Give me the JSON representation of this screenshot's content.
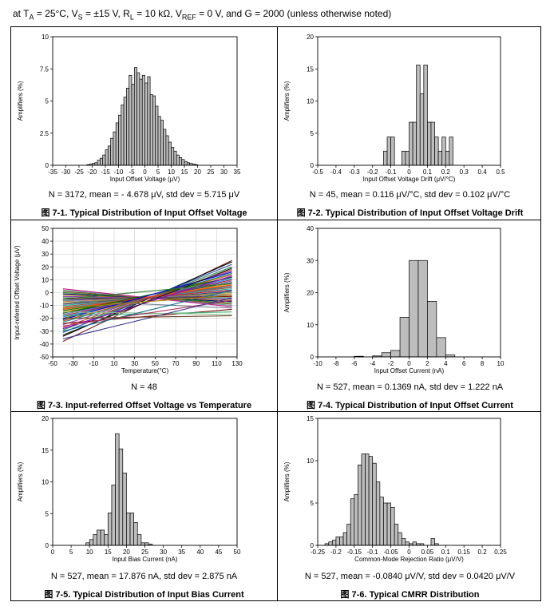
{
  "conditions": {
    "prefix": "at T",
    "ta_sub": "A",
    "mid1": " = 25°C, V",
    "vs_sub": "S",
    "mid2": " = ±15 V, R",
    "rl_sub": "L",
    "mid3": " = 10 kΩ, V",
    "vref_sub": "REF",
    "suffix": " = 0 V, and G = 2000 (unless otherwise noted)"
  },
  "colors": {
    "bar_fill": "#bdbdbd",
    "bar_stroke": "#000000"
  },
  "chart_data": [
    {
      "id": "c1",
      "type": "bar",
      "stats": "N = 3172, mean = - 4.678 μV, std dev = 5.715 μV",
      "caption": "图 7-1. Typical Distribution of Input Offset Voltage",
      "xlabel": "Input Offset Voltage (μV)",
      "ylabel": "Amplifiers (%)",
      "xlim": [
        -35,
        35
      ],
      "ylim": [
        0,
        10
      ],
      "xticks": [
        -35,
        -30,
        -25,
        -20,
        -15,
        -10,
        -5,
        0,
        5,
        10,
        15,
        20,
        25,
        30,
        35
      ],
      "yticks": [
        0,
        2.5,
        5,
        7.5,
        10
      ],
      "ytick_labels": [
        "0",
        "2.5",
        "5",
        "7.5",
        "10"
      ],
      "bin_start": -22,
      "bin_width": 1,
      "values": [
        0.05,
        0.1,
        0.15,
        0.2,
        0.4,
        0.55,
        0.8,
        1.2,
        1.5,
        2.1,
        2.6,
        3.3,
        3.9,
        4.7,
        5.3,
        6.0,
        7.0,
        6.3,
        7.6,
        7.2,
        6.7,
        7.0,
        6.4,
        6.9,
        5.5,
        5.4,
        4.6,
        3.8,
        3.5,
        2.8,
        2.3,
        1.8,
        1.4,
        1.1,
        0.8,
        0.6,
        0.45,
        0.3,
        0.2,
        0.15,
        0.1,
        0.05
      ]
    },
    {
      "id": "c2",
      "type": "bar",
      "stats": "N = 45, mean = 0.116 μV/°C, std dev = 0.102 μV/°C",
      "caption": "图 7-2. Typical Distribution of Input Offset Voltage Drift",
      "xlabel": "Input Offset Voltage Drift (μV/°C)",
      "ylabel": "Amplifiers (%)",
      "xlim": [
        -0.5,
        0.5
      ],
      "ylim": [
        0,
        20
      ],
      "xticks": [
        -0.5,
        -0.4,
        -0.3,
        -0.2,
        -0.1,
        0,
        0.1,
        0.2,
        0.3,
        0.4,
        0.5
      ],
      "xtick_labels": [
        "-0.5",
        "-0.4",
        "-0.3",
        "-0.2",
        "-0.1",
        "0",
        "0.1",
        "0.2",
        "0.3",
        "0.4",
        "0.5"
      ],
      "yticks": [
        0,
        5,
        10,
        15,
        20
      ],
      "bin_start": -0.14,
      "bin_width": 0.02,
      "values": [
        2.2,
        4.4,
        4.4,
        0,
        0,
        2.2,
        2.2,
        6.7,
        6.7,
        15.6,
        11.1,
        15.6,
        6.7,
        6.7,
        4.4,
        2.2,
        4.4,
        2.2,
        4.4
      ]
    },
    {
      "id": "c3",
      "type": "line",
      "stats": "N = 48",
      "caption": "图 7-3. Input-referred Offset Voltage vs Temperature",
      "xlabel": "Temperature(°C)",
      "ylabel": "Input-referred Offset Voltage (μV)",
      "xlim": [
        -50,
        130
      ],
      "ylim": [
        -50,
        50
      ],
      "xticks": [
        -50,
        -30,
        -10,
        10,
        30,
        50,
        70,
        90,
        110,
        130
      ],
      "yticks": [
        -50,
        -40,
        -30,
        -20,
        -10,
        0,
        10,
        20,
        30,
        40,
        50
      ],
      "series": [
        {
          "start": -38,
          "end": 25,
          "color": "#7a1f1f"
        },
        {
          "start": -34,
          "end": 24,
          "color": "#000000"
        },
        {
          "start": -31,
          "end": 22,
          "color": "#1f4fa8"
        },
        {
          "start": -29,
          "end": 20,
          "color": "#2e8b57"
        },
        {
          "start": -27,
          "end": 18,
          "color": "#c0392b"
        },
        {
          "start": -25,
          "end": 17,
          "color": "#8e44ad"
        },
        {
          "start": -23,
          "end": 15,
          "color": "#00868b"
        },
        {
          "start": -22,
          "end": 14,
          "color": "#d35400"
        },
        {
          "start": -20,
          "end": 12,
          "color": "#556b2f"
        },
        {
          "start": -19,
          "end": 11,
          "color": "#1e90ff"
        },
        {
          "start": -18,
          "end": 10,
          "color": "#b22222"
        },
        {
          "start": -17,
          "end": 9,
          "color": "#6a5acd"
        },
        {
          "start": -16,
          "end": 8,
          "color": "#2f4f4f"
        },
        {
          "start": -15,
          "end": 7,
          "color": "#ff8c00"
        },
        {
          "start": -14,
          "end": 6,
          "color": "#008000"
        },
        {
          "start": -13,
          "end": 5,
          "color": "#800080"
        },
        {
          "start": -12,
          "end": 5,
          "color": "#4682b4"
        },
        {
          "start": -11,
          "end": 4,
          "color": "#a0522d"
        },
        {
          "start": -10,
          "end": 3,
          "color": "#20b2aa"
        },
        {
          "start": -9,
          "end": 2,
          "color": "#dc143c"
        },
        {
          "start": -9,
          "end": 1,
          "color": "#483d8b"
        },
        {
          "start": -8,
          "end": 0,
          "color": "#6b8e23"
        },
        {
          "start": -7,
          "end": -1,
          "color": "#cd853f"
        },
        {
          "start": -6,
          "end": -2,
          "color": "#4169e1"
        },
        {
          "start": -5,
          "end": -3,
          "color": "#8b0000"
        },
        {
          "start": -4,
          "end": -4,
          "color": "#2e8b57"
        },
        {
          "start": -3,
          "end": -5,
          "color": "#9932cc"
        },
        {
          "start": -2,
          "end": -6,
          "color": "#b8860b"
        },
        {
          "start": -1,
          "end": -7,
          "color": "#000080"
        },
        {
          "start": 0,
          "end": -8,
          "color": "#228b22"
        },
        {
          "start": 1,
          "end": -9,
          "color": "#8b4513"
        },
        {
          "start": 2,
          "end": -10,
          "color": "#5f9ea0"
        },
        {
          "start": 3,
          "end": -11,
          "color": "#c71585"
        },
        {
          "start": -6,
          "end": -12,
          "color": "#708090"
        },
        {
          "start": -13,
          "end": 6,
          "color": "#ff4500"
        },
        {
          "start": -16,
          "end": 12,
          "color": "#006400"
        },
        {
          "start": -21,
          "end": 16,
          "color": "#0000cd"
        },
        {
          "start": -24,
          "end": -13,
          "color": "#800000"
        },
        {
          "start": -18,
          "end": -15,
          "color": "#3cb371"
        },
        {
          "start": -28,
          "end": 13,
          "color": "#9400d3"
        },
        {
          "start": -33,
          "end": 19,
          "color": "#1c1c1c"
        },
        {
          "start": -15,
          "end": -17,
          "color": "#8fbc8f"
        },
        {
          "start": -26,
          "end": -6,
          "color": "#b03060"
        },
        {
          "start": -30,
          "end": 2,
          "color": "#0f6b8f"
        },
        {
          "start": -12,
          "end": -2,
          "color": "#a67c00"
        },
        {
          "start": -36,
          "end": -4,
          "color": "#3b3b8f"
        },
        {
          "start": -20,
          "end": -18,
          "color": "#6b4226"
        },
        {
          "start": -5,
          "end": 7,
          "color": "#2b7a2b"
        }
      ]
    },
    {
      "id": "c4",
      "type": "bar",
      "stats": "N = 527, mean = 0.1369 nA, std dev = 1.222 nA",
      "caption": "图 7-4. Typical Distribution of Input Offset Current",
      "xlabel": "Input Offset Current (nA)",
      "ylabel": "Amplifiers (%)",
      "xlim": [
        -10,
        10
      ],
      "ylim": [
        0,
        40
      ],
      "xticks": [
        -10,
        -8,
        -6,
        -4,
        -2,
        0,
        2,
        4,
        6,
        8,
        10
      ],
      "yticks": [
        0,
        10,
        20,
        30,
        40
      ],
      "bin_start": -6,
      "bin_width": 1,
      "values": [
        0.2,
        0,
        0.3,
        1.3,
        2,
        12.3,
        30,
        30,
        17.3,
        6,
        0.6
      ]
    },
    {
      "id": "c5",
      "type": "bar",
      "stats": "N = 527, mean = 17.876 nA, std dev = 2.875 nA",
      "caption": "图 7-5. Typical Distribution of Input Bias Current",
      "xlabel": "Input Bias Current (nA)",
      "ylabel": "Amplifiers (%)",
      "xlim": [
        0,
        50
      ],
      "ylim": [
        0,
        20
      ],
      "xticks": [
        0,
        5,
        10,
        15,
        20,
        25,
        30,
        35,
        40,
        45,
        50
      ],
      "yticks": [
        0,
        5,
        10,
        15,
        20
      ],
      "bin_start": 9,
      "bin_width": 1,
      "values": [
        0.4,
        0.9,
        1.7,
        2.4,
        2.4,
        1.7,
        5.1,
        9.5,
        17.6,
        15.2,
        11.4,
        5.1,
        5.1,
        3.6,
        1.7,
        0.4,
        0.4,
        0.2
      ]
    },
    {
      "id": "c6",
      "type": "bar",
      "stats": "N = 527, mean = -0.0840 μV/V, std dev = 0.0420 μV/V",
      "caption": "图 7-6. Typical CMRR Distribution",
      "xlabel": "Common-Mode Rejection Ratio (μV/V)",
      "ylabel": "Amplifiers (%)",
      "xlim": [
        -0.25,
        0.25
      ],
      "ylim": [
        0,
        15
      ],
      "xticks": [
        -0.25,
        -0.2,
        -0.15,
        -0.1,
        -0.05,
        0,
        0.05,
        0.1,
        0.15,
        0.2,
        0.25
      ],
      "xtick_labels": [
        "-0.25",
        "-0.2",
        "-0.15",
        "-0.1",
        "-0.05",
        "0",
        "0.05",
        "0.1",
        "0.15",
        "0.2",
        "0.25"
      ],
      "yticks": [
        0,
        5,
        10,
        15
      ],
      "bin_start": -0.23,
      "bin_width": 0.01,
      "values": [
        0.2,
        0.4,
        0.6,
        1,
        1,
        1.5,
        2.5,
        5.5,
        6,
        9.5,
        10.8,
        10.8,
        10.5,
        9.7,
        7.5,
        5.7,
        5,
        5,
        4.5,
        2.5,
        1.5,
        0.8,
        0.4,
        0.2,
        0.4,
        0.2,
        0.2,
        0,
        0,
        0.8,
        0.2
      ]
    }
  ]
}
